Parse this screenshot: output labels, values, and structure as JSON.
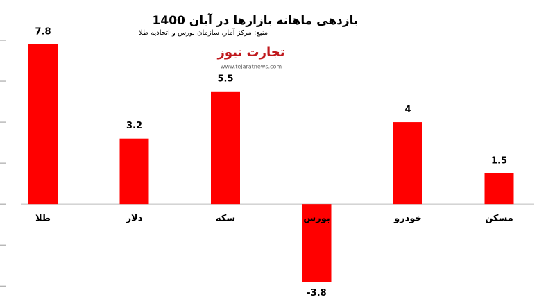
{
  "chart_data": {
    "type": "bar",
    "title": "بازدهی ماهانه بازارها در آبان  1400",
    "source": "منبع: مرکز آمار، سازمان بورس و اتحادیه طلا",
    "logo": "تجارت نیوز",
    "website": "www.tejaratnews.com",
    "categories": [
      "طلا",
      "دلار",
      "سکه",
      "بورس",
      "خودرو",
      "مسکن"
    ],
    "values": [
      7.8,
      3.2,
      5.5,
      -3.8,
      4,
      1.5
    ],
    "color": "#ff0000",
    "ylim": [
      -4.5,
      8
    ],
    "yticks": [
      -4,
      -2,
      0,
      2,
      4,
      6,
      8
    ],
    "grid": true
  }
}
